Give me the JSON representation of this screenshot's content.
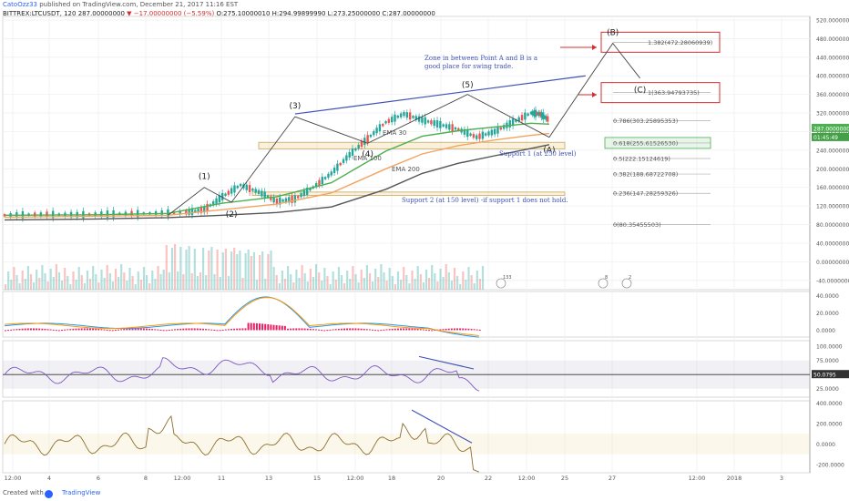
{
  "header": {
    "author": "CatoOzz33",
    "published": "published on TradingView.com, December 21, 2017 11:16 EST",
    "symbol": "BITTREX:LTCUSDT, 120",
    "last": "287.00000000",
    "change": "▼ −17.00000000 (−5.59%)",
    "ohlc": "O:275.10000010  H:294.99899990  L:273.25000000  C:287.00000000"
  },
  "footer": {
    "created_with": "Created with",
    "brand": "TradingView"
  },
  "chart_data": {
    "type": "line",
    "title": "",
    "xlabel": "",
    "ylabel": "",
    "price_ylim": [
      -60,
      520
    ],
    "grid": true,
    "x_ticks": [
      "12:00",
      "4",
      "6",
      "8",
      "12:00",
      "11",
      "13",
      "15",
      "12:00",
      "18",
      "20",
      "22",
      "12:00",
      "25",
      "27",
      "12:00",
      "2018",
      "3"
    ],
    "price_ticks": [
      "520.00000000",
      "480.00000000",
      "440.00000000",
      "400.00000000",
      "360.00000000",
      "320.00000000",
      "280.00000000",
      "240.00000000",
      "200.00000000",
      "160.00000000",
      "120.00000000",
      "80.00000000",
      "40.00000000",
      "0.00000000",
      "-40.00000000"
    ],
    "last_price_label": "287.00000000",
    "countdown_label": "01:45:49",
    "price_series": {
      "x": [
        0,
        4,
        8,
        12,
        16,
        20,
        22,
        24,
        26,
        28,
        30,
        32,
        34,
        36,
        38,
        40,
        42,
        44,
        46,
        48,
        50,
        52,
        54,
        56,
        58,
        59,
        60
      ],
      "y": [
        100,
        102,
        101,
        103,
        104,
        106,
        112,
        140,
        165,
        150,
        130,
        135,
        160,
        190,
        230,
        265,
        300,
        318,
        305,
        295,
        285,
        268,
        280,
        300,
        320,
        318,
        305
      ]
    },
    "ema_series": [
      {
        "name": "EMA 30",
        "color": "#4caf50",
        "x": [
          0,
          10,
          18,
          24,
          30,
          36,
          42,
          46,
          50,
          54,
          58,
          60
        ],
        "y": [
          100,
          101,
          104,
          126,
          140,
          170,
          238,
          270,
          282,
          290,
          298,
          296
        ]
      },
      {
        "name": "EMA 100",
        "color": "#f4a460",
        "x": [
          0,
          10,
          18,
          24,
          30,
          36,
          42,
          46,
          50,
          54,
          58,
          60
        ],
        "y": [
          96,
          98,
          100,
          112,
          124,
          148,
          200,
          232,
          250,
          262,
          272,
          276
        ]
      },
      {
        "name": "EMA 200",
        "color": "#555555",
        "x": [
          0,
          10,
          18,
          24,
          30,
          36,
          42,
          46,
          50,
          54,
          58,
          60
        ],
        "y": [
          90,
          92,
          95,
          100,
          106,
          118,
          156,
          190,
          212,
          228,
          244,
          252
        ]
      }
    ],
    "wave_labels": [
      {
        "label": "(1)",
        "x": 22,
        "y": 168
      },
      {
        "label": "(2)",
        "x": 25,
        "y": 120
      },
      {
        "label": "(3)",
        "x": 32,
        "y": 320
      },
      {
        "label": "(4)",
        "x": 40,
        "y": 250
      },
      {
        "label": "(5)",
        "x": 51,
        "y": 365
      },
      {
        "label": "(A)",
        "x": 60,
        "y": 258
      },
      {
        "label": "(B)",
        "x": 67,
        "y": 478
      },
      {
        "label": "(C)",
        "x": 70,
        "y": 388
      }
    ],
    "fib_levels": [
      {
        "ratio": "1.382",
        "value": 472.28060939,
        "label": "1.382(472.28060939)",
        "boxed": true
      },
      {
        "ratio": "1",
        "value": 363.94793735,
        "label": "1(363.94793735)",
        "boxed": true
      },
      {
        "ratio": "0.786",
        "value": 303.25895353,
        "label": "0.786(303.25895353)",
        "boxed": false
      },
      {
        "ratio": "0.618",
        "value": 255.6152653,
        "label": "0.618(255.61526530)",
        "boxed": false
      },
      {
        "ratio": "0.5",
        "value": 222.15124619,
        "label": "0.5(222.15124619)",
        "boxed": false
      },
      {
        "ratio": "0.382",
        "value": 188.68722708,
        "label": "0.382(188.68722708)",
        "boxed": false
      },
      {
        "ratio": "0.236",
        "value": 147.28259326,
        "label": "0.236(147.28259326)",
        "boxed": false
      },
      {
        "ratio": "0",
        "value": 80.35455503,
        "label": "0(80.35455503)",
        "boxed": false
      }
    ],
    "annotations": {
      "zone_text_1": "Zone in between Point A and B is a",
      "zone_text_2": "good place for swing trade.",
      "support_1": "Support 1 (at 250 level)",
      "support_2": "Support 2 (at 150 level) -if support 1 does not hold."
    },
    "support_zones": [
      {
        "name": "support-1",
        "y_low": 243,
        "y_high": 257
      },
      {
        "name": "support-2",
        "y_low": 143,
        "y_high": 150
      }
    ],
    "event_badges": [
      "133",
      "8",
      "2"
    ],
    "macd": {
      "ticks": [
        "40.0000",
        "20.0000",
        "0.0000"
      ],
      "ylim": [
        -8,
        45
      ]
    },
    "rsi": {
      "ticks": [
        "100.0000",
        "75.0000",
        "50.0000",
        "25.0000"
      ],
      "ylim": [
        10,
        110
      ],
      "value_label": "50.0795"
    },
    "cci": {
      "ticks": [
        "400.0000",
        "200.0000",
        "0.0000",
        "-200.0000"
      ],
      "ylim": [
        -280,
        420
      ]
    }
  }
}
